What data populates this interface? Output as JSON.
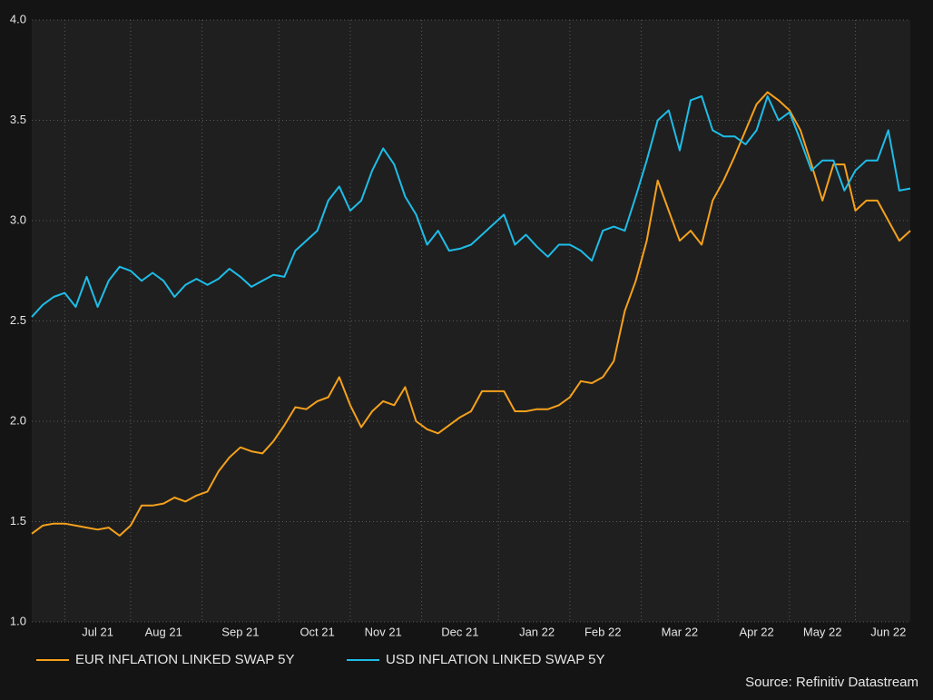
{
  "chart_data": {
    "type": "line",
    "source": "Source: Refinitiv Datastream",
    "categories": [
      null,
      null,
      null,
      null,
      null,
      null,
      "Jul 21",
      null,
      null,
      null,
      null,
      null,
      "Aug 21",
      null,
      null,
      null,
      null,
      null,
      null,
      "Sep 21",
      null,
      null,
      null,
      null,
      null,
      null,
      "Oct 21",
      null,
      null,
      null,
      null,
      null,
      "Nov 21",
      null,
      null,
      null,
      null,
      null,
      null,
      "Dec 21",
      null,
      null,
      null,
      null,
      null,
      null,
      "Jan 22",
      null,
      null,
      null,
      null,
      null,
      "Feb 22",
      null,
      null,
      null,
      null,
      null,
      null,
      "Mar 22",
      null,
      null,
      null,
      null,
      null,
      null,
      "Apr 22",
      null,
      null,
      null,
      null,
      null,
      "May 22",
      null,
      null,
      null,
      null,
      null,
      "Jun 22",
      null,
      null
    ],
    "series": [
      {
        "name": "EUR INFLATION LINKED SWAP 5Y",
        "color": "#f5a11c",
        "values": [
          1.44,
          1.48,
          1.49,
          1.49,
          1.48,
          1.47,
          1.46,
          1.47,
          1.43,
          1.48,
          1.58,
          1.58,
          1.59,
          1.62,
          1.6,
          1.63,
          1.65,
          1.75,
          1.82,
          1.87,
          1.85,
          1.84,
          1.9,
          1.98,
          2.07,
          2.06,
          2.1,
          2.12,
          2.22,
          2.08,
          1.97,
          2.05,
          2.1,
          2.08,
          2.17,
          2.0,
          1.96,
          1.94,
          1.98,
          2.02,
          2.05,
          2.15,
          2.15,
          2.15,
          2.05,
          2.05,
          2.06,
          2.06,
          2.08,
          2.12,
          2.2,
          2.19,
          2.22,
          2.3,
          2.55,
          2.7,
          2.9,
          3.2,
          3.05,
          2.9,
          2.95,
          2.88,
          3.1,
          3.2,
          3.32,
          3.45,
          3.58,
          3.64,
          3.6,
          3.55,
          3.45,
          3.28,
          3.1,
          3.28,
          3.28,
          3.05,
          3.1,
          3.1,
          3.0,
          2.9,
          2.95
        ]
      },
      {
        "name": "USD INFLATION LINKED SWAP 5Y",
        "color": "#1ebde8",
        "values": [
          2.52,
          2.58,
          2.62,
          2.64,
          2.57,
          2.72,
          2.57,
          2.7,
          2.77,
          2.75,
          2.7,
          2.74,
          2.7,
          2.62,
          2.68,
          2.71,
          2.68,
          2.71,
          2.76,
          2.72,
          2.67,
          2.7,
          2.73,
          2.72,
          2.85,
          2.9,
          2.95,
          3.1,
          3.17,
          3.05,
          3.1,
          3.25,
          3.36,
          3.28,
          3.12,
          3.03,
          2.88,
          2.95,
          2.85,
          2.86,
          2.88,
          2.93,
          2.98,
          3.03,
          2.88,
          2.93,
          2.87,
          2.82,
          2.88,
          2.88,
          2.85,
          2.8,
          2.95,
          2.97,
          2.95,
          3.12,
          3.3,
          3.5,
          3.55,
          3.35,
          3.6,
          3.62,
          3.45,
          3.42,
          3.42,
          3.38,
          3.45,
          3.62,
          3.5,
          3.54,
          3.4,
          3.25,
          3.3,
          3.3,
          3.15,
          3.25,
          3.3,
          3.3,
          3.45,
          3.15,
          3.16
        ]
      }
    ],
    "ylim": [
      1,
      4
    ],
    "yticks": [
      {
        "value": 1,
        "label": "1.0"
      },
      1.5,
      {
        "value": 2,
        "label": "2.0"
      },
      2.5,
      {
        "value": 3,
        "label": "3.0"
      },
      3.5,
      {
        "value": 4,
        "label": "4.0"
      }
    ],
    "grid": true
  }
}
